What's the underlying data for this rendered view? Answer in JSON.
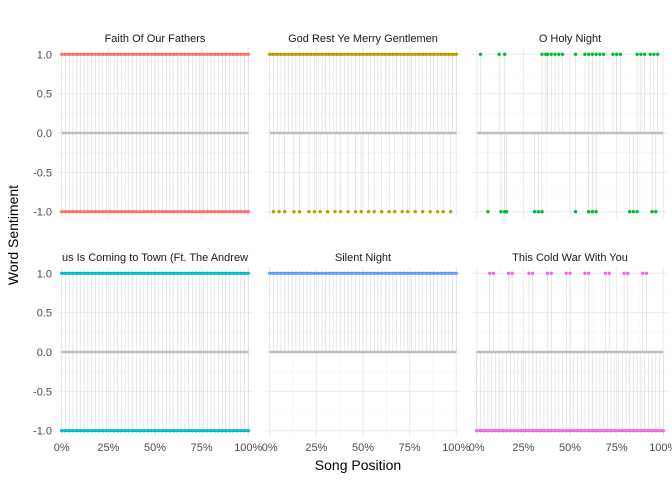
{
  "chart_data": {
    "type": "scatter",
    "xlabel": "Song Position",
    "ylabel": "Word Sentiment",
    "ylim": [
      -1.08,
      1.08
    ],
    "xlim": [
      -0.02,
      1.02
    ],
    "y_ticks": [
      "1.0",
      "0.5",
      "0.0",
      "-0.5",
      "-1.0"
    ],
    "y_tick_values": [
      1.0,
      0.5,
      0.0,
      -0.5,
      -1.0
    ],
    "x_ticks": [
      "0%",
      "25%",
      "50%",
      "75%",
      "100%"
    ],
    "x_tick_values": [
      0,
      0.25,
      0.5,
      0.75,
      1.0
    ],
    "grid": true,
    "legend": "none",
    "panels": [
      {
        "title": "Faith Of Our Fathers",
        "color": "#F8766D",
        "density": "dense",
        "positive_x": [
          0.0,
          0.02,
          0.04,
          0.06,
          0.08,
          0.1,
          0.12,
          0.14,
          0.16,
          0.18,
          0.2,
          0.22,
          0.24,
          0.26,
          0.28,
          0.3,
          0.32,
          0.34,
          0.36,
          0.38,
          0.4,
          0.42,
          0.44,
          0.46,
          0.48,
          0.5,
          0.52,
          0.54,
          0.56,
          0.58,
          0.6,
          0.62,
          0.64,
          0.66,
          0.68,
          0.7,
          0.72,
          0.74,
          0.76,
          0.78,
          0.8,
          0.82,
          0.84,
          0.86,
          0.88,
          0.9,
          0.92,
          0.94,
          0.96,
          0.98,
          1.0
        ],
        "negative_x": [
          0.0,
          0.02,
          0.04,
          0.06,
          0.08,
          0.1,
          0.12,
          0.14,
          0.16,
          0.18,
          0.2,
          0.22,
          0.24,
          0.26,
          0.28,
          0.3,
          0.32,
          0.34,
          0.36,
          0.38,
          0.4,
          0.42,
          0.44,
          0.46,
          0.48,
          0.5,
          0.52,
          0.54,
          0.56,
          0.58,
          0.6,
          0.62,
          0.64,
          0.66,
          0.68,
          0.7,
          0.72,
          0.74,
          0.76,
          0.78,
          0.8,
          0.82,
          0.84,
          0.86,
          0.88,
          0.9,
          0.92,
          0.94,
          0.96,
          0.98,
          1.0
        ]
      },
      {
        "title": "God Rest Ye Merry Gentlemen",
        "color": "#B79F00",
        "density": "dense",
        "positive_x": [
          0.0,
          0.02,
          0.04,
          0.06,
          0.08,
          0.1,
          0.12,
          0.14,
          0.16,
          0.18,
          0.2,
          0.22,
          0.24,
          0.26,
          0.28,
          0.3,
          0.32,
          0.34,
          0.36,
          0.38,
          0.4,
          0.42,
          0.44,
          0.46,
          0.48,
          0.5,
          0.52,
          0.54,
          0.56,
          0.58,
          0.6,
          0.62,
          0.64,
          0.66,
          0.68,
          0.7,
          0.72,
          0.74,
          0.76,
          0.78,
          0.8,
          0.82,
          0.84,
          0.86,
          0.88,
          0.9,
          0.92,
          0.94,
          0.96,
          0.98,
          1.0
        ],
        "negative_x": [
          0.02,
          0.05,
          0.08,
          0.13,
          0.16,
          0.21,
          0.24,
          0.27,
          0.31,
          0.35,
          0.38,
          0.42,
          0.46,
          0.49,
          0.53,
          0.56,
          0.6,
          0.64,
          0.67,
          0.71,
          0.74,
          0.78,
          0.82,
          0.86,
          0.9,
          0.93,
          0.97
        ]
      },
      {
        "title": "O Holy Night",
        "color": "#00BA38",
        "density": "sparse",
        "positive_x": [
          0.02,
          0.12,
          0.15,
          0.35,
          0.37,
          0.38,
          0.4,
          0.42,
          0.44,
          0.46,
          0.53,
          0.58,
          0.6,
          0.62,
          0.64,
          0.66,
          0.68,
          0.73,
          0.75,
          0.77,
          0.86,
          0.88,
          0.9,
          0.93,
          0.95,
          0.97
        ],
        "negative_x": [
          0.06,
          0.13,
          0.15,
          0.16,
          0.31,
          0.33,
          0.35,
          0.53,
          0.6,
          0.62,
          0.64,
          0.82,
          0.84,
          0.86,
          0.94,
          0.96
        ]
      },
      {
        "title": "us Is Coming to Town (Ft. The Andrew",
        "color": "#00BFC4",
        "density": "dense",
        "positive_x": [
          0.0,
          0.02,
          0.04,
          0.06,
          0.08,
          0.1,
          0.12,
          0.14,
          0.16,
          0.18,
          0.2,
          0.22,
          0.24,
          0.26,
          0.28,
          0.3,
          0.32,
          0.34,
          0.36,
          0.38,
          0.4,
          0.42,
          0.44,
          0.46,
          0.48,
          0.5,
          0.52,
          0.54,
          0.56,
          0.58,
          0.6,
          0.62,
          0.64,
          0.66,
          0.68,
          0.7,
          0.72,
          0.74,
          0.76,
          0.78,
          0.8,
          0.82,
          0.84,
          0.86,
          0.88,
          0.9,
          0.92,
          0.94,
          0.96,
          0.98,
          1.0
        ],
        "negative_x": [
          0.0,
          0.02,
          0.04,
          0.06,
          0.08,
          0.1,
          0.12,
          0.14,
          0.16,
          0.18,
          0.2,
          0.22,
          0.24,
          0.26,
          0.28,
          0.3,
          0.32,
          0.34,
          0.36,
          0.38,
          0.4,
          0.42,
          0.44,
          0.46,
          0.48,
          0.5,
          0.52,
          0.54,
          0.56,
          0.58,
          0.6,
          0.62,
          0.64,
          0.66,
          0.68,
          0.7,
          0.72,
          0.74,
          0.76,
          0.78,
          0.8,
          0.82,
          0.84,
          0.86,
          0.88,
          0.9,
          0.92,
          0.94,
          0.96,
          0.98,
          1.0
        ]
      },
      {
        "title": "Silent Night",
        "color": "#619CFF",
        "density": "dense",
        "positive_x": [
          0.0,
          0.02,
          0.04,
          0.06,
          0.08,
          0.1,
          0.12,
          0.14,
          0.16,
          0.18,
          0.2,
          0.22,
          0.24,
          0.26,
          0.28,
          0.3,
          0.32,
          0.34,
          0.36,
          0.38,
          0.4,
          0.42,
          0.44,
          0.46,
          0.48,
          0.5,
          0.52,
          0.54,
          0.56,
          0.58,
          0.6,
          0.62,
          0.64,
          0.66,
          0.68,
          0.7,
          0.72,
          0.74,
          0.76,
          0.78,
          0.8,
          0.82,
          0.84,
          0.86,
          0.88,
          0.9,
          0.92,
          0.94,
          0.96,
          0.98,
          1.0
        ],
        "negative_x": []
      },
      {
        "title": "This Cold War With You",
        "color": "#F564E3",
        "density": "mixed",
        "positive_x": [
          0.07,
          0.09,
          0.17,
          0.19,
          0.28,
          0.3,
          0.38,
          0.4,
          0.48,
          0.5,
          0.58,
          0.6,
          0.69,
          0.71,
          0.79,
          0.81,
          0.89,
          0.91
        ],
        "negative_x": [
          0.0,
          0.02,
          0.04,
          0.06,
          0.08,
          0.1,
          0.12,
          0.14,
          0.16,
          0.18,
          0.2,
          0.22,
          0.24,
          0.26,
          0.28,
          0.3,
          0.32,
          0.34,
          0.36,
          0.38,
          0.4,
          0.42,
          0.44,
          0.46,
          0.48,
          0.5,
          0.52,
          0.54,
          0.56,
          0.58,
          0.6,
          0.62,
          0.64,
          0.66,
          0.68,
          0.7,
          0.72,
          0.74,
          0.76,
          0.78,
          0.8,
          0.82,
          0.84,
          0.86,
          0.88,
          0.9,
          0.92,
          0.94,
          0.96,
          0.98,
          1.0
        ]
      }
    ]
  }
}
